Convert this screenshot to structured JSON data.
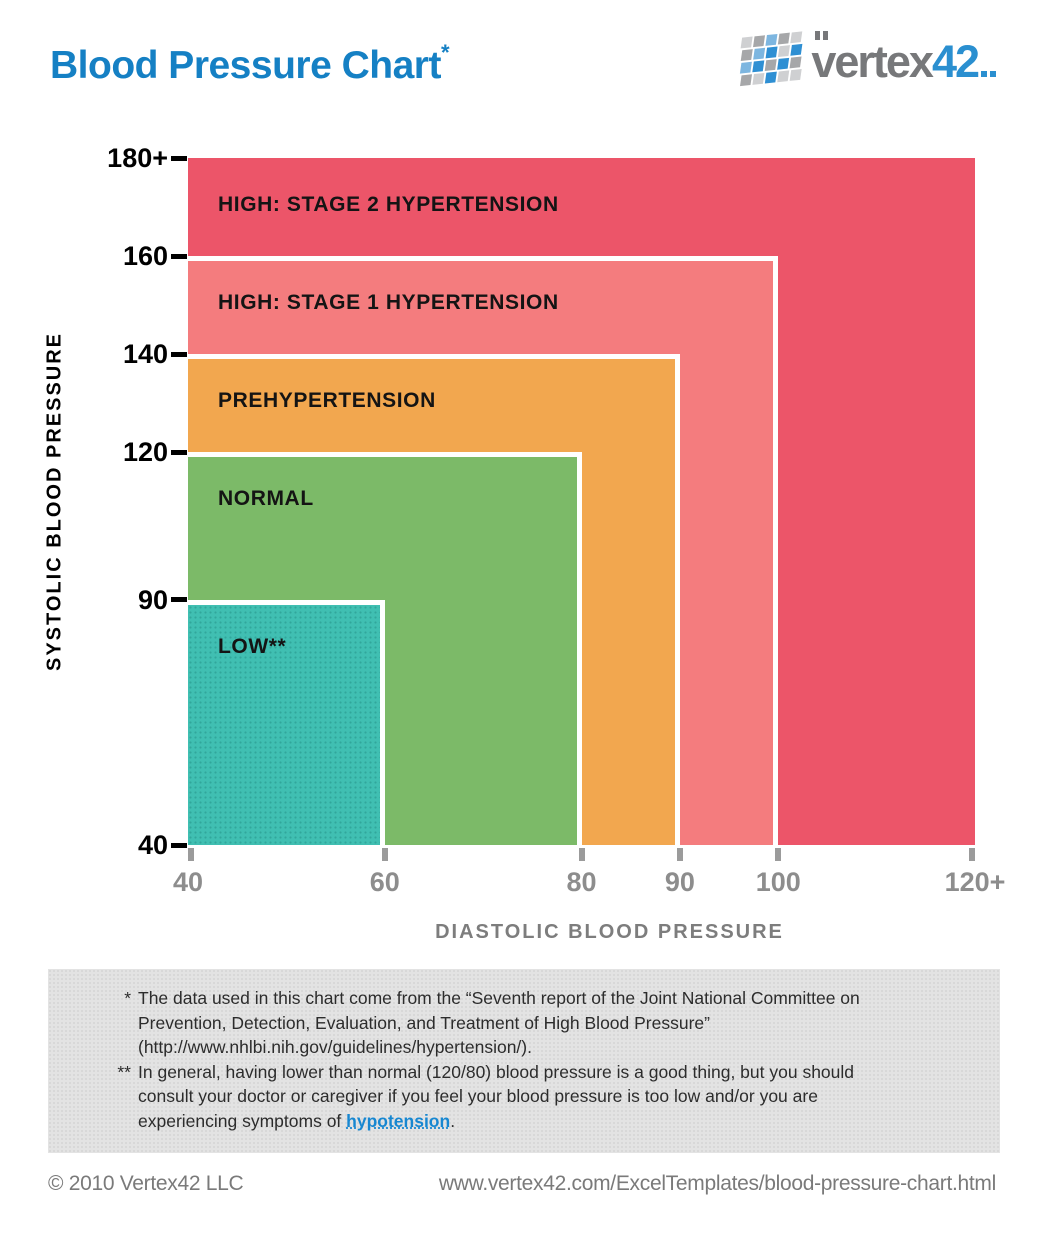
{
  "header": {
    "title": "Blood Pressure Chart",
    "title_superscript": "*",
    "title_color": "#1580c4",
    "logo": {
      "name": "vertex42",
      "text_gray": "vertex",
      "text_blue": "42",
      "gray_color": "#77787a",
      "blue_color": "#2a8fd0",
      "tile_colors": {
        "b": "#2e8fd3",
        "lb": "#7db6e0",
        "g": "#a6a7a9",
        "lg": "#cfd0d2"
      }
    }
  },
  "chart_data": {
    "type": "area",
    "subtype": "nested-zone-rectangles",
    "title": "Blood Pressure Chart",
    "xlabel": "DIASTOLIC BLOOD PRESSURE",
    "ylabel": "SYSTOLIC BLOOD PRESSURE",
    "xlim": [
      40,
      120
    ],
    "ylim": [
      40,
      180
    ],
    "grid": false,
    "x_ticks": [
      {
        "value": 40,
        "label": "40"
      },
      {
        "value": 60,
        "label": "60"
      },
      {
        "value": 80,
        "label": "80"
      },
      {
        "value": 90,
        "label": "90"
      },
      {
        "value": 100,
        "label": "100"
      },
      {
        "value": 120,
        "label": "120+"
      }
    ],
    "y_ticks": [
      {
        "value": 40,
        "label": "40"
      },
      {
        "value": 90,
        "label": "90"
      },
      {
        "value": 120,
        "label": "120"
      },
      {
        "value": 140,
        "label": "140"
      },
      {
        "value": 160,
        "label": "160"
      },
      {
        "value": 180,
        "label": "180+"
      }
    ],
    "zones": [
      {
        "id": "stage-2-hypertension",
        "label": "HIGH: STAGE 2 HYPERTENSION",
        "systolic_min": 40,
        "systolic_max": 180,
        "diastolic_min": 40,
        "diastolic_max": 120,
        "color": "#ec5569"
      },
      {
        "id": "stage-1-hypertension",
        "label": "HIGH: STAGE 1 HYPERTENSION",
        "systolic_min": 40,
        "systolic_max": 160,
        "diastolic_min": 40,
        "diastolic_max": 100,
        "color": "#f47c7e"
      },
      {
        "id": "prehypertension",
        "label": "PREHYPERTENSION",
        "systolic_min": 40,
        "systolic_max": 140,
        "diastolic_min": 40,
        "diastolic_max": 90,
        "color": "#f2a74f"
      },
      {
        "id": "normal",
        "label": "NORMAL",
        "systolic_min": 40,
        "systolic_max": 120,
        "diastolic_min": 40,
        "diastolic_max": 80,
        "color": "#7cba68"
      },
      {
        "id": "low",
        "label": "LOW**",
        "systolic_min": 40,
        "systolic_max": 90,
        "diastolic_min": 40,
        "diastolic_max": 60,
        "color": "#40bfb2",
        "textured": true
      }
    ]
  },
  "footnotes": {
    "note1": {
      "marker": "*",
      "line1": "The data used in this chart come from the “Seventh report of the Joint National Committee on",
      "line2": "Prevention, Detection, Evaluation, and Treatment of High Blood Pressure”",
      "line3": "(http://www.nhlbi.nih.gov/guidelines/hypertension/)."
    },
    "note2": {
      "marker": "**",
      "line1": "In general, having lower than normal (120/80) blood pressure is a good thing, but you should",
      "line2": "consult your doctor or caregiver if you feel your blood pressure is too low and/or you are",
      "line3_prefix": "experiencing symptoms of ",
      "link": "hypotension",
      "line3_suffix": "."
    }
  },
  "footer": {
    "copyright": "© 2010 Vertex42 LLC",
    "url": "www.vertex42.com/ExcelTemplates/blood-pressure-chart.html"
  }
}
